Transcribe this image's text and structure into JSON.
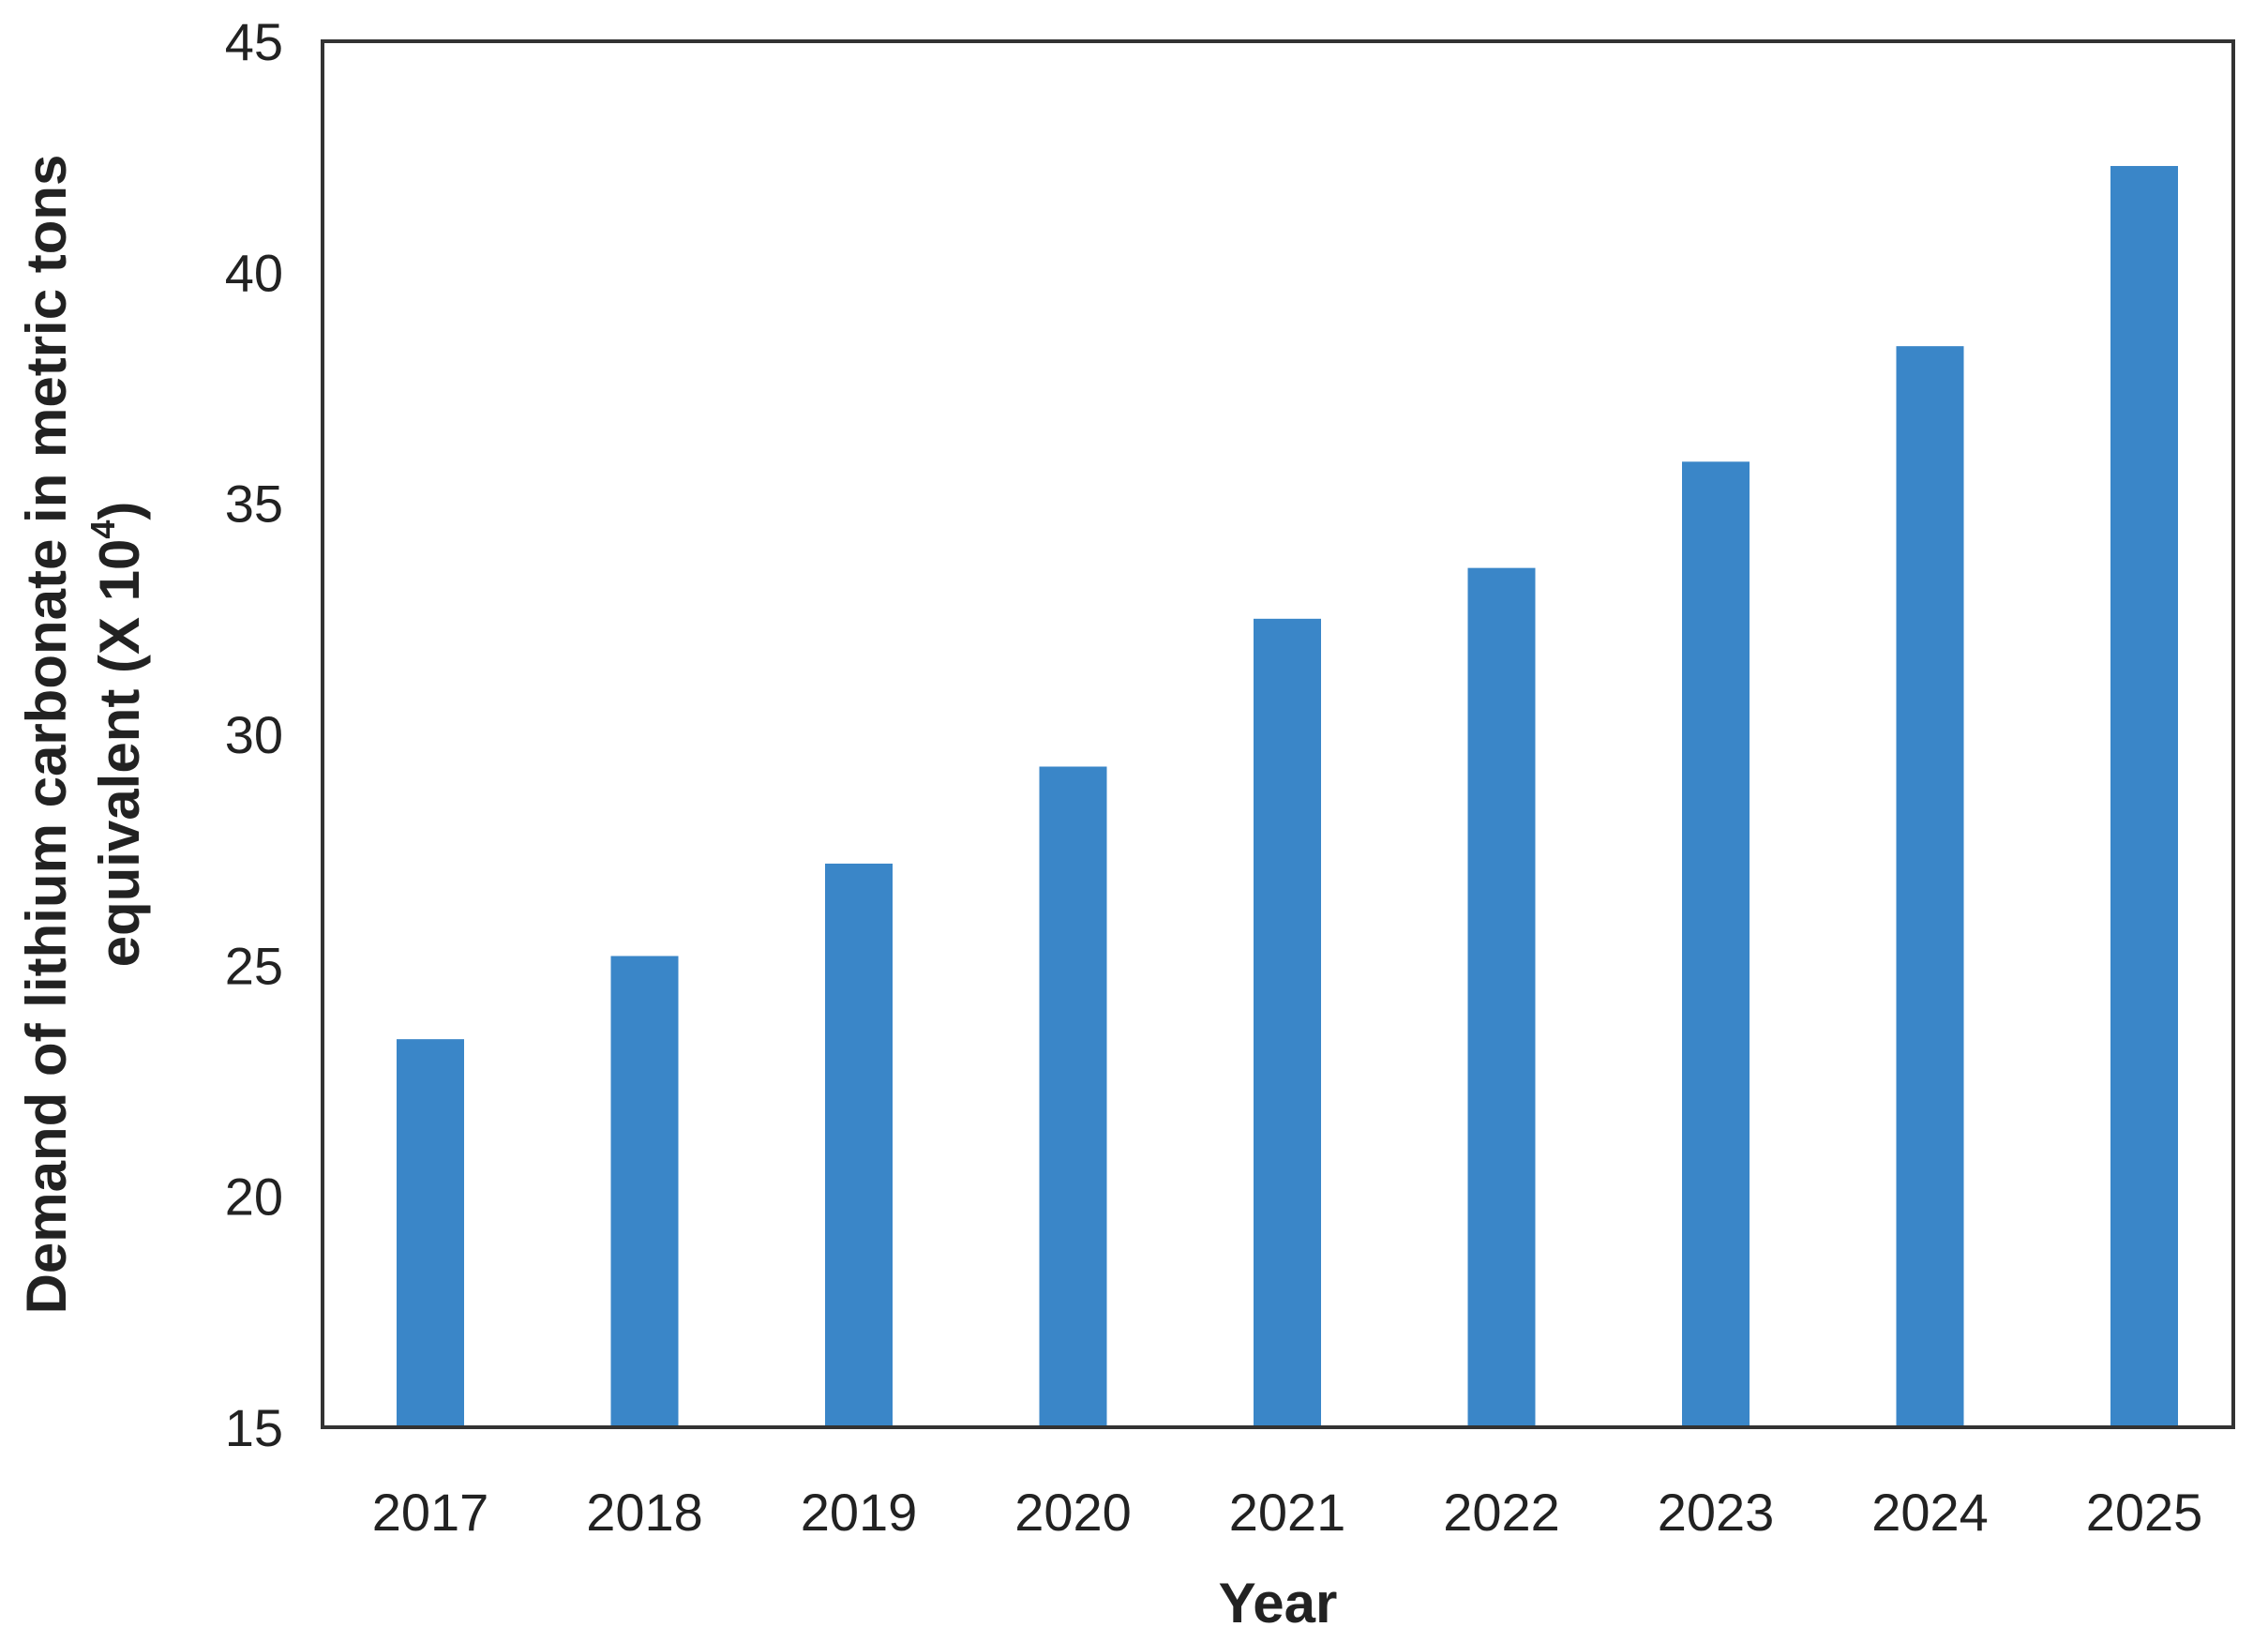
{
  "chart_data": {
    "type": "bar",
    "categories": [
      "2017",
      "2018",
      "2019",
      "2020",
      "2021",
      "2022",
      "2023",
      "2024",
      "2025"
    ],
    "values": [
      23.4,
      25.2,
      27.2,
      29.3,
      32.5,
      33.6,
      35.9,
      38.4,
      42.3
    ],
    "title": "",
    "xlabel": "Year",
    "ylabel_line1": "Demand of lithium carbonate in metric tons",
    "ylabel_line2_prefix": "equivalent (X 10",
    "ylabel_line2_exponent": "4",
    "ylabel_line2_suffix": ")",
    "ylim": [
      15,
      45
    ],
    "yticks": [
      "15",
      "20",
      "25",
      "30",
      "35",
      "40",
      "45"
    ],
    "grid": false,
    "legend": "none",
    "bar_color": "#3a86c8"
  }
}
